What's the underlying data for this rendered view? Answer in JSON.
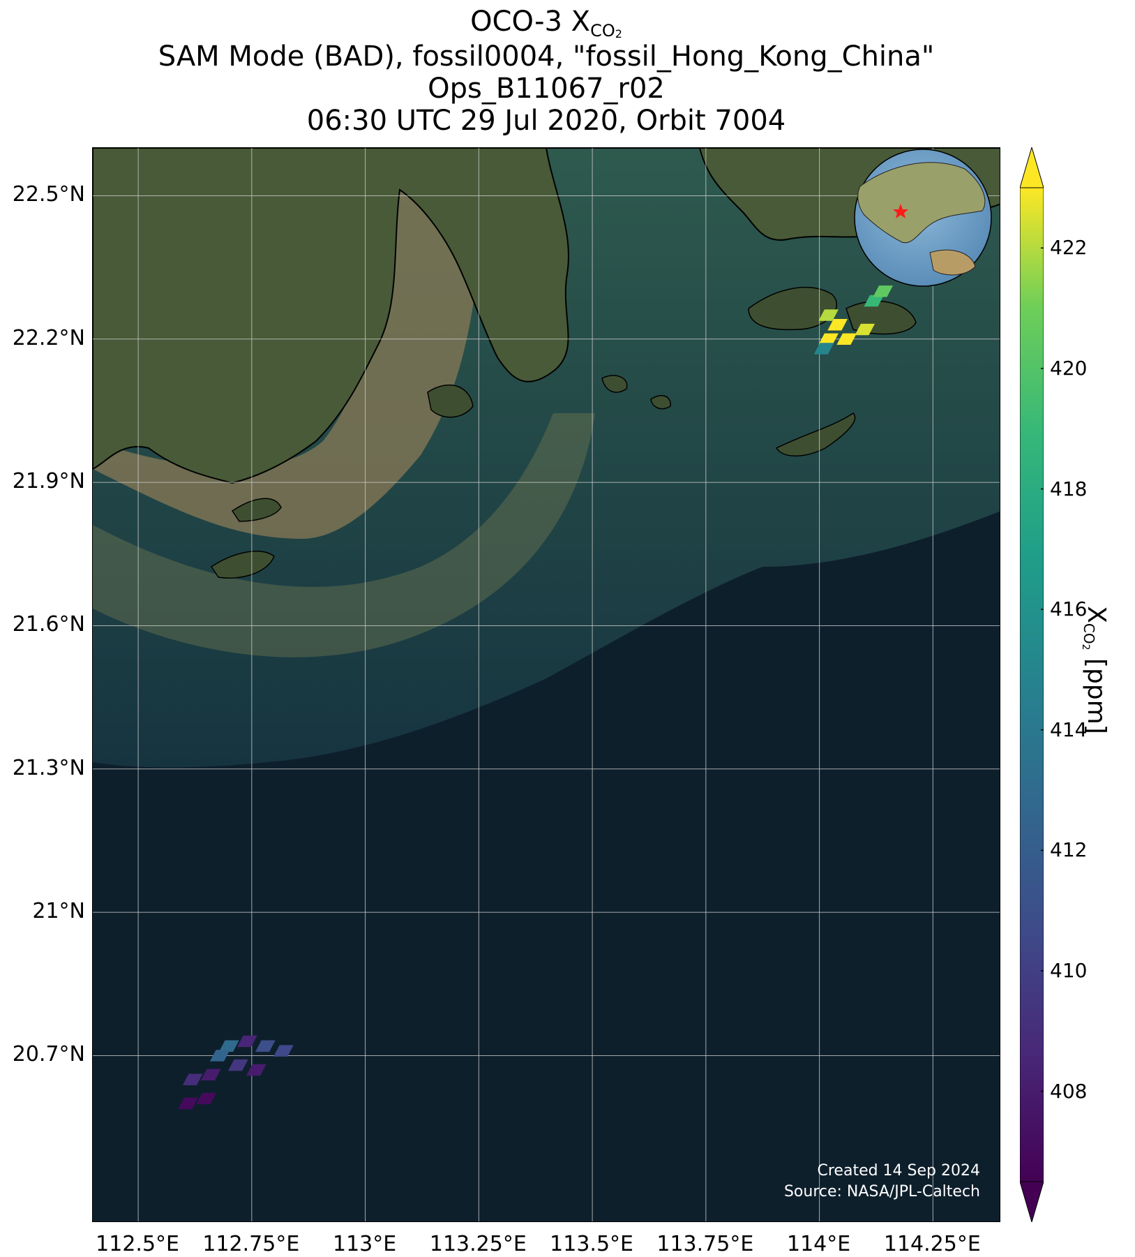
{
  "title": {
    "line1_prefix": "OCO-3 X",
    "line1_sub": "CO",
    "line1_sub2": "2",
    "line2": "SAM Mode (BAD), fossil0004, \"fossil_Hong_Kong_China\"",
    "line3": "Ops_B11067_r02",
    "line4": "06:30 UTC 29 Jul 2020, Orbit 7004"
  },
  "map": {
    "lon_range": [
      112.4,
      114.4
    ],
    "lat_range": [
      20.35,
      22.6
    ],
    "lat_ticks": [
      {
        "value": 22.5,
        "label": "22.5°N"
      },
      {
        "value": 22.2,
        "label": "22.2°N"
      },
      {
        "value": 21.9,
        "label": "21.9°N"
      },
      {
        "value": 21.6,
        "label": "21.6°N"
      },
      {
        "value": 21.3,
        "label": "21.3°N"
      },
      {
        "value": 21.0,
        "label": "21°N"
      },
      {
        "value": 20.7,
        "label": "20.7°N"
      }
    ],
    "lon_ticks": [
      {
        "value": 112.5,
        "label": "112.5°E"
      },
      {
        "value": 112.75,
        "label": "112.75°E"
      },
      {
        "value": 113.0,
        "label": "113°E"
      },
      {
        "value": 113.25,
        "label": "113.25°E"
      },
      {
        "value": 113.5,
        "label": "113.5°E"
      },
      {
        "value": 113.75,
        "label": "113.75°E"
      },
      {
        "value": 114.0,
        "label": "114°E"
      },
      {
        "value": 114.25,
        "label": "114.25°E"
      }
    ],
    "grid": true,
    "colors": {
      "ocean": "#0e1f2c",
      "land": "#4a5a3a",
      "coast": "#000000",
      "grid": "#cccccc"
    },
    "soundings": [
      {
        "lon": 114.02,
        "lat": 22.2,
        "xco2": 423.0
      },
      {
        "lon": 114.06,
        "lat": 22.2,
        "xco2": 423.5
      },
      {
        "lon": 114.1,
        "lat": 22.22,
        "xco2": 422.5
      },
      {
        "lon": 114.04,
        "lat": 22.23,
        "xco2": 423.0
      },
      {
        "lon": 114.02,
        "lat": 22.25,
        "xco2": 422.0
      },
      {
        "lon": 114.01,
        "lat": 22.18,
        "xco2": 415.0
      },
      {
        "lon": 114.12,
        "lat": 22.28,
        "xco2": 419.0
      },
      {
        "lon": 114.14,
        "lat": 22.3,
        "xco2": 420.5
      },
      {
        "lon": 112.7,
        "lat": 20.72,
        "xco2": 413.0
      },
      {
        "lon": 112.74,
        "lat": 20.73,
        "xco2": 408.5
      },
      {
        "lon": 112.78,
        "lat": 20.72,
        "xco2": 411.0
      },
      {
        "lon": 112.82,
        "lat": 20.71,
        "xco2": 410.5
      },
      {
        "lon": 112.68,
        "lat": 20.7,
        "xco2": 412.5
      },
      {
        "lon": 112.72,
        "lat": 20.68,
        "xco2": 409.5
      },
      {
        "lon": 112.76,
        "lat": 20.67,
        "xco2": 408.0
      },
      {
        "lon": 112.66,
        "lat": 20.66,
        "xco2": 408.0
      },
      {
        "lon": 112.62,
        "lat": 20.65,
        "xco2": 409.0
      },
      {
        "lon": 112.65,
        "lat": 20.61,
        "xco2": 407.0
      },
      {
        "lon": 112.61,
        "lat": 20.6,
        "xco2": 407.0
      }
    ],
    "target_marker": "red-star"
  },
  "colorbar": {
    "min": 406.5,
    "max": 423,
    "ticks": [
      408,
      410,
      412,
      414,
      416,
      418,
      420,
      422
    ],
    "label_prefix": "X",
    "label_sub": "CO",
    "label_sub2": "2",
    "label_suffix": " [ppm]",
    "colormap": "viridis",
    "extend": "both"
  },
  "credits": {
    "created": "Created 14 Sep 2024",
    "source": "Source: NASA/JPL-Caltech"
  }
}
